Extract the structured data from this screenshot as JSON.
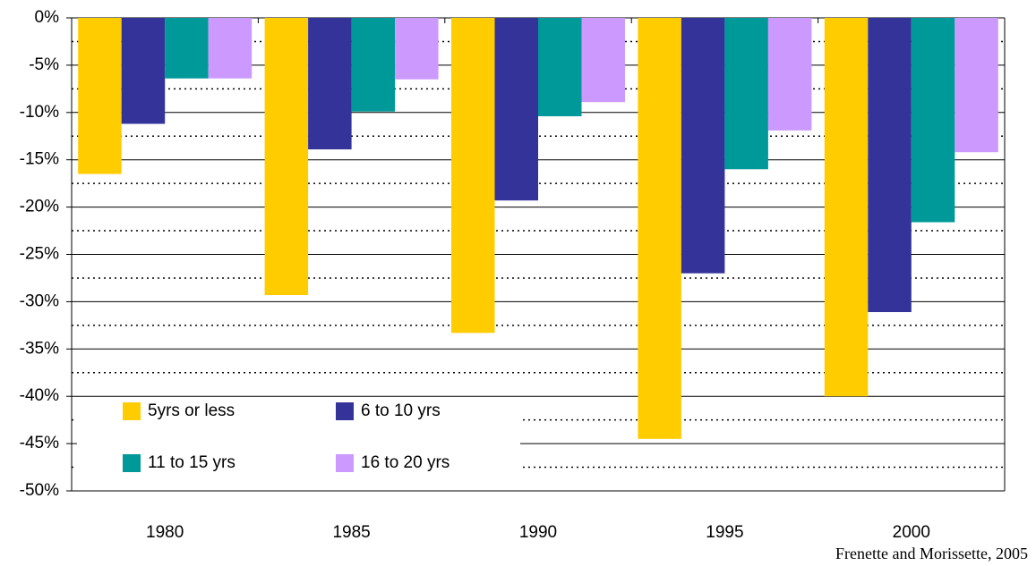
{
  "chart_data": {
    "type": "bar",
    "categories": [
      "1980",
      "1985",
      "1990",
      "1995",
      "2000"
    ],
    "series": [
      {
        "name": "5yrs or less",
        "color": "#ffcc00",
        "values": [
          -16.5,
          -29.3,
          -33.3,
          -44.5,
          -40.0
        ]
      },
      {
        "name": "6 to 10 yrs",
        "color": "#333399",
        "values": [
          -11.2,
          -13.9,
          -19.3,
          -27.0,
          -31.1
        ]
      },
      {
        "name": "11 to 15 yrs",
        "color": "#009999",
        "values": [
          -6.4,
          -9.9,
          -10.4,
          -16.0,
          -21.6
        ]
      },
      {
        "name": "16 to 20 yrs",
        "color": "#cc99ff",
        "values": [
          -6.4,
          -6.5,
          -8.9,
          -11.9,
          -14.2
        ]
      }
    ],
    "ylim": [
      -50,
      0
    ],
    "yticks": [
      {
        "value": 0,
        "label": "0%"
      },
      {
        "value": -5,
        "label": "-5%"
      },
      {
        "value": -10,
        "label": "-10%"
      },
      {
        "value": -15,
        "label": "-15%"
      },
      {
        "value": -20,
        "label": "-20%"
      },
      {
        "value": -25,
        "label": "-25%"
      },
      {
        "value": -30,
        "label": "-30%"
      },
      {
        "value": -35,
        "label": "-35%"
      },
      {
        "value": -40,
        "label": "-40%"
      },
      {
        "value": -45,
        "label": "-45%"
      },
      {
        "value": -50,
        "label": "-50%"
      }
    ],
    "minor_yticks": [
      -2.5,
      -7.5,
      -12.5,
      -17.5,
      -22.5,
      -27.5,
      -32.5,
      -37.5,
      -42.5,
      -47.5
    ],
    "grid": true,
    "legend": "bottom-left",
    "source": "Frenette and Morissette, 2005"
  }
}
